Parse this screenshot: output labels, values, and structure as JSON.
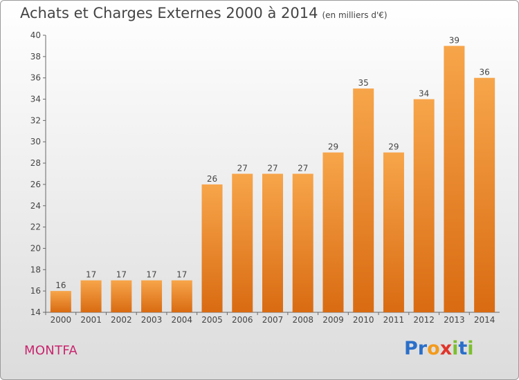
{
  "title": "Achats et Charges Externes 2000 à 2014",
  "unit": "(en milliers d'€)",
  "place": "MONTFA",
  "logo": {
    "letters": [
      {
        "ch": "P",
        "color": "#2a6fc9"
      },
      {
        "ch": "r",
        "color": "#2a6fc9"
      },
      {
        "ch": "o",
        "color": "#f39a1c"
      },
      {
        "ch": "x",
        "color": "#e0352b"
      },
      {
        "ch": "i",
        "color": "#7cbf2f"
      },
      {
        "ch": "t",
        "color": "#2a6fc9"
      },
      {
        "ch": "i",
        "color": "#7cbf2f"
      }
    ]
  },
  "chart_data": {
    "type": "bar",
    "categories": [
      "2000",
      "2001",
      "2002",
      "2003",
      "2004",
      "2005",
      "2006",
      "2007",
      "2008",
      "2009",
      "2010",
      "2011",
      "2012",
      "2013",
      "2014"
    ],
    "values": [
      16,
      17,
      17,
      17,
      17,
      26,
      27,
      27,
      27,
      29,
      35,
      29,
      34,
      39,
      36
    ],
    "ylim": [
      14,
      40
    ],
    "yticks": [
      14,
      16,
      18,
      20,
      22,
      24,
      26,
      28,
      30,
      32,
      34,
      36,
      38,
      40
    ],
    "grid": false,
    "bar_color_top": "#f7a54a",
    "bar_color_bottom": "#d96b12"
  }
}
